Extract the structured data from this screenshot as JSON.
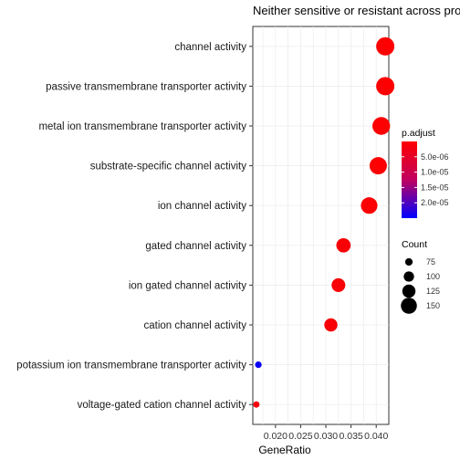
{
  "chart_data": {
    "type": "scatter",
    "title": "Neither sensitive or resistant across pro",
    "xlabel": "GeneRatio",
    "ylabel": "",
    "xlim": [
      0.0155,
      0.0425
    ],
    "xticks": [
      0.02,
      0.025,
      0.03,
      0.035,
      0.04
    ],
    "xtick_labels": [
      "0.020",
      "0.025",
      "0.030",
      "0.035",
      "0.040"
    ],
    "grid": true,
    "legend_position": "right",
    "categories": [
      "channel activity",
      "passive transmembrane transporter activity",
      "metal ion transmembrane transporter activity",
      "substrate-specific channel activity",
      "ion channel activity",
      "gated channel activity",
      "ion gated channel activity",
      "cation channel activity",
      "potassium ion transmembrane transporter activity",
      "voltage-gated cation channel activity"
    ],
    "points": [
      {
        "term": "channel activity",
        "gene_ratio": 0.0418,
        "count": 170,
        "p_adjust": 2e-07
      },
      {
        "term": "passive transmembrane transporter activity",
        "gene_ratio": 0.0418,
        "count": 170,
        "p_adjust": 2e-07
      },
      {
        "term": "metal ion transmembrane transporter activity",
        "gene_ratio": 0.041,
        "count": 165,
        "p_adjust": 3e-07
      },
      {
        "term": "substrate-specific channel activity",
        "gene_ratio": 0.0404,
        "count": 162,
        "p_adjust": 3e-07
      },
      {
        "term": "ion channel activity",
        "gene_ratio": 0.0386,
        "count": 155,
        "p_adjust": 4e-07
      },
      {
        "term": "gated channel activity",
        "gene_ratio": 0.0335,
        "count": 135,
        "p_adjust": 6e-07
      },
      {
        "term": "ion gated channel activity",
        "gene_ratio": 0.0325,
        "count": 130,
        "p_adjust": 6e-07
      },
      {
        "term": "cation channel activity",
        "gene_ratio": 0.031,
        "count": 125,
        "p_adjust": 8e-07
      },
      {
        "term": "potassium ion transmembrane transporter activity",
        "gene_ratio": 0.0166,
        "count": 67,
        "p_adjust": 2.4e-05
      },
      {
        "term": "voltage-gated cation channel activity",
        "gene_ratio": 0.0162,
        "count": 65,
        "p_adjust": 1e-06
      }
    ],
    "color_legend": {
      "title": "p.adjust",
      "range": [
        0,
        2.5e-05
      ],
      "ticks": [
        5e-06,
        1e-05,
        1.5e-05,
        2e-05
      ],
      "tick_labels": [
        "5.0e-06",
        "1.0e-05",
        "1.5e-05",
        "2.0e-05"
      ],
      "low_color": "#ff0000",
      "high_color": "#0000ff"
    },
    "size_legend": {
      "title": "Count",
      "values": [
        75,
        100,
        125,
        150
      ],
      "labels": [
        "75",
        "100",
        "125",
        "150"
      ],
      "size_range": [
        65,
        170
      ]
    }
  }
}
